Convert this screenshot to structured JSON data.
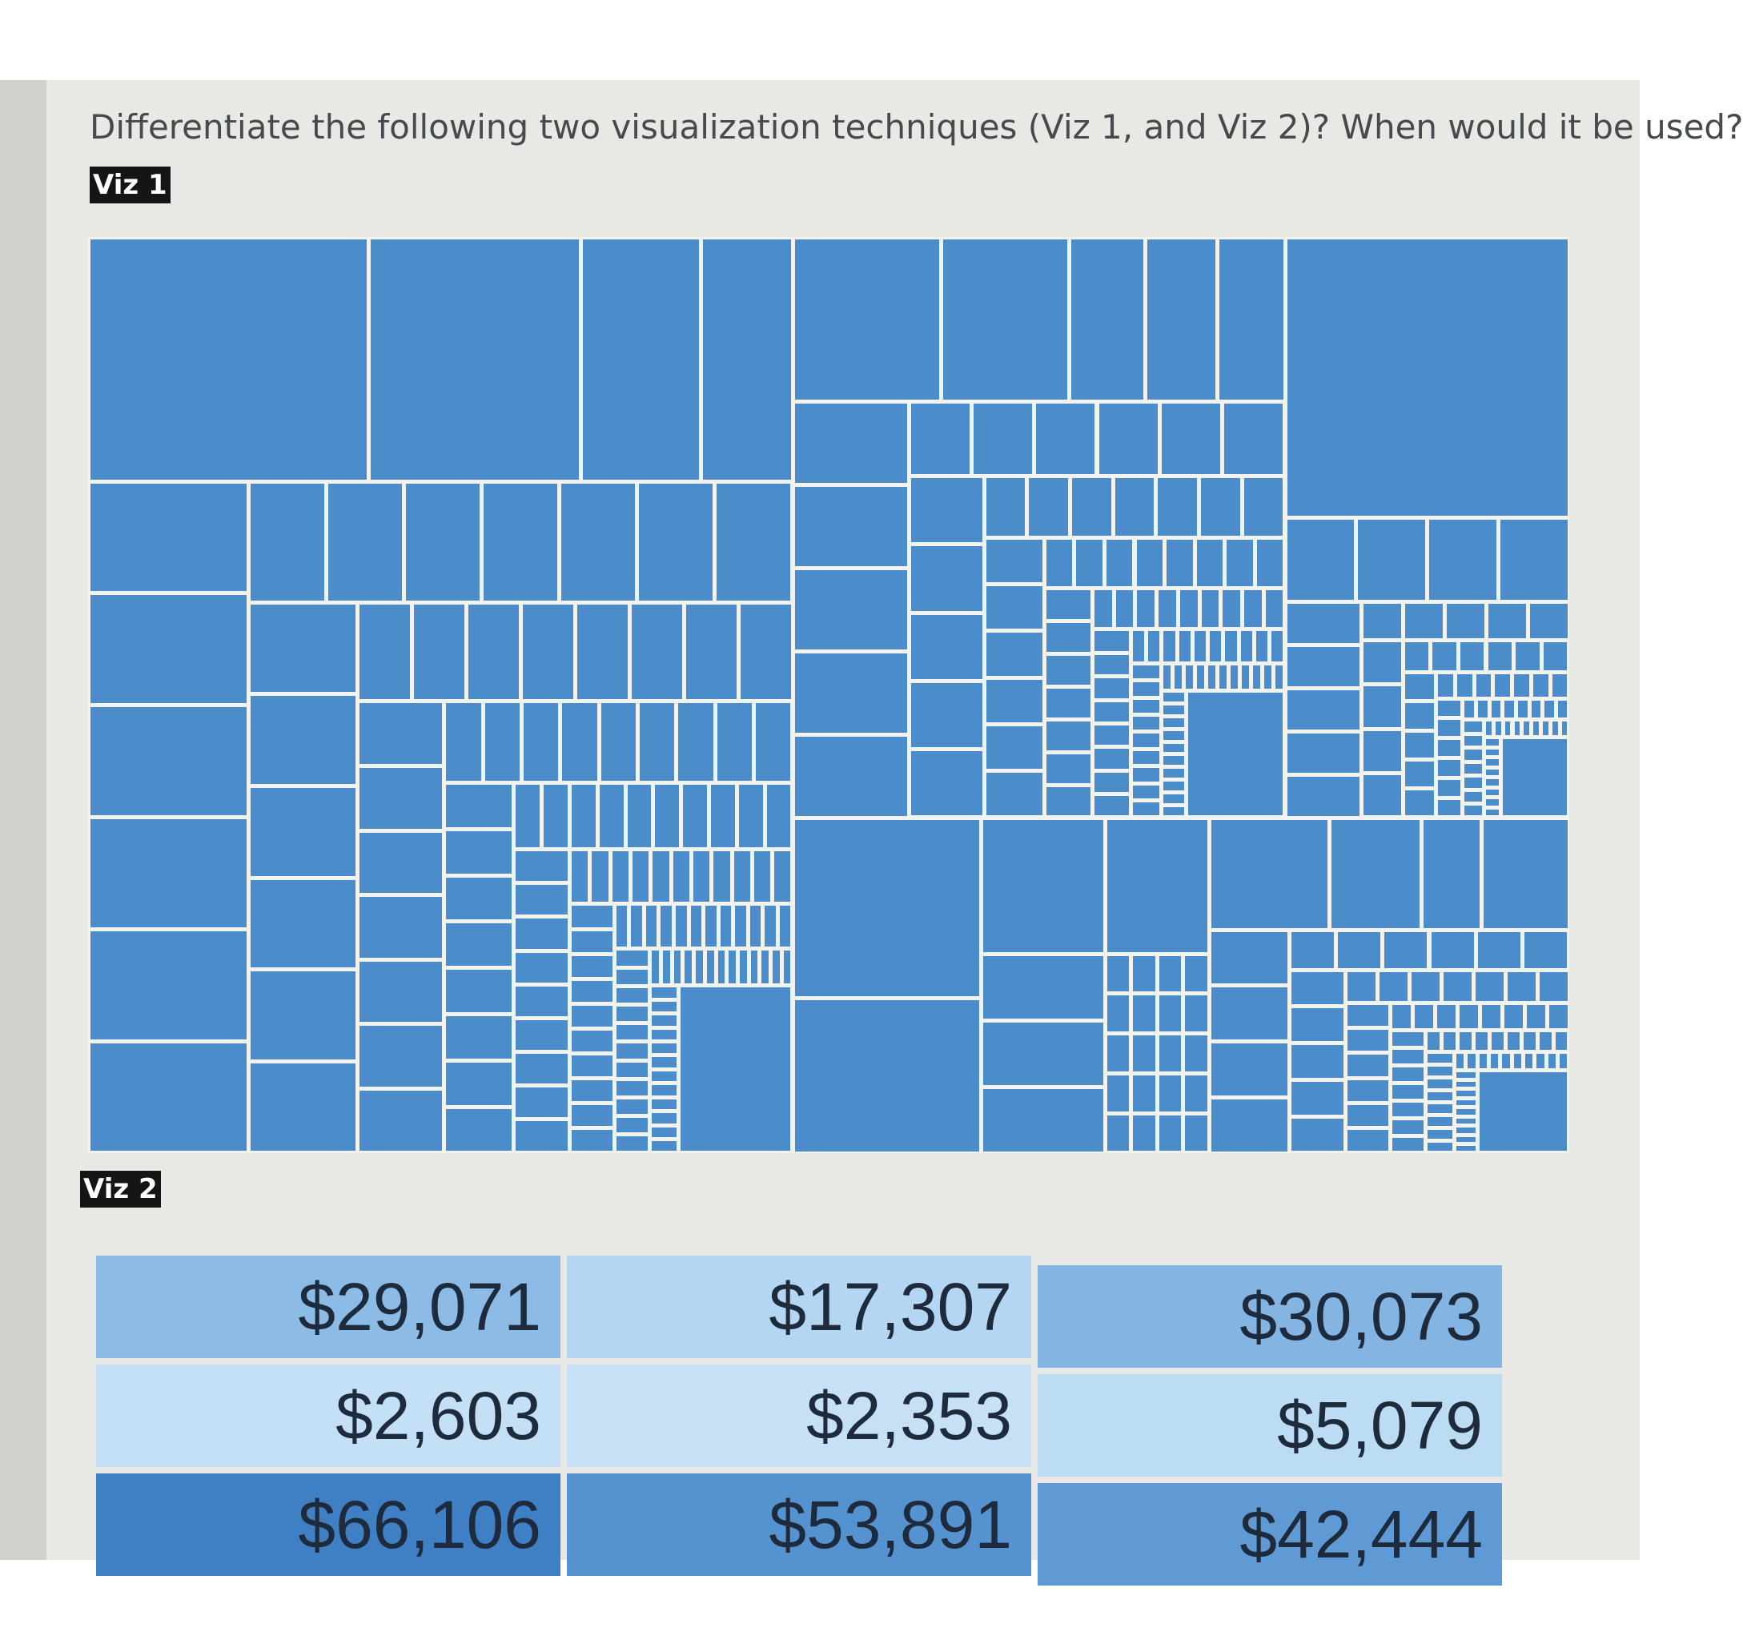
{
  "question": "Differentiate the following two visualization techniques (Viz 1, and Viz 2)? When would it be used?",
  "viz1_label": "Viz 1",
  "viz2_label": "Viz 2",
  "tile_color": "#4b8ccb",
  "heatmap": {
    "rows": [
      [
        {
          "value": "$29,071",
          "color": "#8cbbe6"
        },
        {
          "value": "$17,307",
          "color": "#b4d6f2"
        },
        {
          "value": "$30,073",
          "color": "#84b5e2"
        }
      ],
      [
        {
          "value": "$2,603",
          "color": "#c4e0f6"
        },
        {
          "value": "$2,353",
          "color": "#c6e1f6"
        },
        {
          "value": "$5,079",
          "color": "#bcdcf4"
        }
      ],
      [
        {
          "value": "$66,106",
          "color": "#3f7fc4"
        },
        {
          "value": "$53,891",
          "color": "#5593d0"
        },
        {
          "value": "$42,444",
          "color": "#5f9ad4"
        }
      ]
    ]
  }
}
